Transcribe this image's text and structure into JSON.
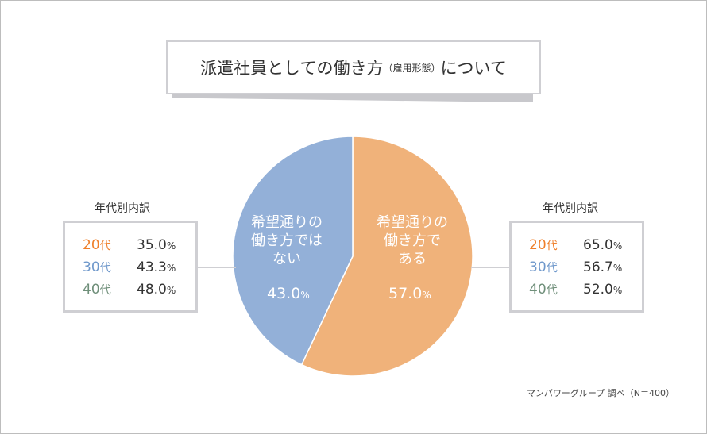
{
  "title": {
    "main": "派遣社員としての働き方",
    "paren": "（雇用形態）",
    "tail": "について"
  },
  "chart_data": {
    "type": "pie",
    "slices": [
      {
        "label": "希望通りの働き方である",
        "value": 57.0,
        "color": "#f0b27a",
        "label_lines": [
          "希望通りの",
          "働き方で",
          "ある"
        ],
        "pct": "57.0"
      },
      {
        "label": "希望通りの働き方ではない",
        "value": 43.0,
        "color": "#93b0d8",
        "label_lines": [
          "希望通りの",
          "働き方では",
          "ない"
        ],
        "pct": "43.0"
      }
    ],
    "unit": "%",
    "breakdown_title": "年代別内訳",
    "age_suffix": "代",
    "ages": [
      {
        "age": "20",
        "color": "#ef7f2a"
      },
      {
        "age": "30",
        "color": "#6f98cb"
      },
      {
        "age": "40",
        "color": "#6f8f7a"
      }
    ],
    "breakdown_left": [
      "35.0",
      "43.3",
      "48.0"
    ],
    "breakdown_right": [
      "65.0",
      "56.7",
      "52.0"
    ]
  },
  "source": "マンパワーグループ 調べ（N＝400）"
}
